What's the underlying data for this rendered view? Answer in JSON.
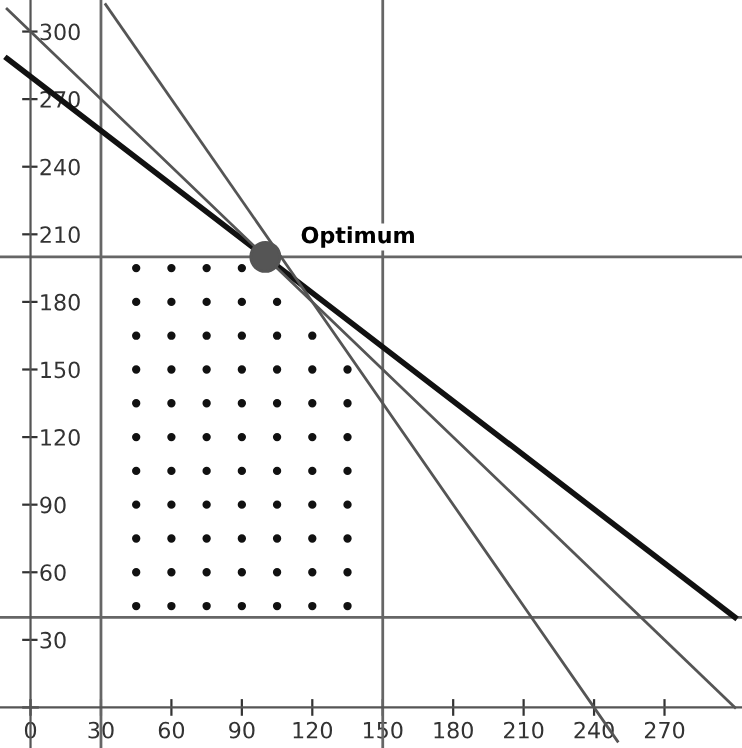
{
  "chart_data": {
    "type": "line",
    "xlim": [
      -13,
      303
    ],
    "ylim": [
      -18,
      314
    ],
    "xticks": [
      0,
      30,
      60,
      90,
      120,
      150,
      180,
      210,
      240,
      270
    ],
    "yticks": [
      {
        "value": 0,
        "label": null
      },
      30,
      60,
      90,
      120,
      150,
      180,
      210,
      240,
      270,
      300
    ],
    "grid": false,
    "legend": false,
    "series": [
      {
        "color": "#111111",
        "x": [
          -10,
          300
        ],
        "values": [
          288,
          40
        ]
      },
      {
        "color": "#555555",
        "x": [
          -10,
          300
        ],
        "values": [
          310,
          0
        ]
      },
      {
        "color": "#555555",
        "x": [
          32,
          250
        ],
        "values": [
          312,
          -15
        ]
      },
      {
        "type": "scatter",
        "color": "#111111",
        "x": [
          45,
          60,
          75,
          90,
          45,
          60,
          75,
          90,
          105,
          45,
          60,
          75,
          90,
          105,
          120,
          45,
          60,
          75,
          90,
          105,
          120,
          135,
          45,
          60,
          75,
          90,
          105,
          120,
          135,
          45,
          60,
          75,
          90,
          105,
          120,
          135,
          45,
          60,
          75,
          90,
          105,
          120,
          135,
          45,
          60,
          75,
          90,
          105,
          120,
          135,
          45,
          60,
          75,
          90,
          105,
          120,
          135,
          45,
          60,
          75,
          90,
          105,
          120,
          135,
          45,
          60,
          75,
          90,
          105,
          120,
          135
        ],
        "values": [
          195,
          195,
          195,
          195,
          180,
          180,
          180,
          180,
          180,
          165,
          165,
          165,
          165,
          165,
          165,
          150,
          150,
          150,
          150,
          150,
          150,
          150,
          135,
          135,
          135,
          135,
          135,
          135,
          135,
          120,
          120,
          120,
          120,
          120,
          120,
          120,
          105,
          105,
          105,
          105,
          105,
          105,
          105,
          90,
          90,
          90,
          90,
          90,
          90,
          90,
          75,
          75,
          75,
          75,
          75,
          75,
          75,
          60,
          60,
          60,
          60,
          60,
          60,
          60,
          45,
          45,
          45,
          45,
          45,
          45,
          45
        ]
      },
      {
        "type": "scatter",
        "color": "#555555",
        "x": [
          100
        ],
        "values": [
          200
        ]
      }
    ],
    "ref_lines": [
      {
        "axis": "x",
        "value": 30,
        "color": "#666666"
      },
      {
        "axis": "x",
        "value": 150,
        "color": "#666666"
      },
      {
        "axis": "y",
        "value": 200,
        "color": "#666666"
      },
      {
        "axis": "y",
        "value": 40,
        "color": "#666666"
      }
    ],
    "annotations": [
      "Optimum"
    ]
  }
}
